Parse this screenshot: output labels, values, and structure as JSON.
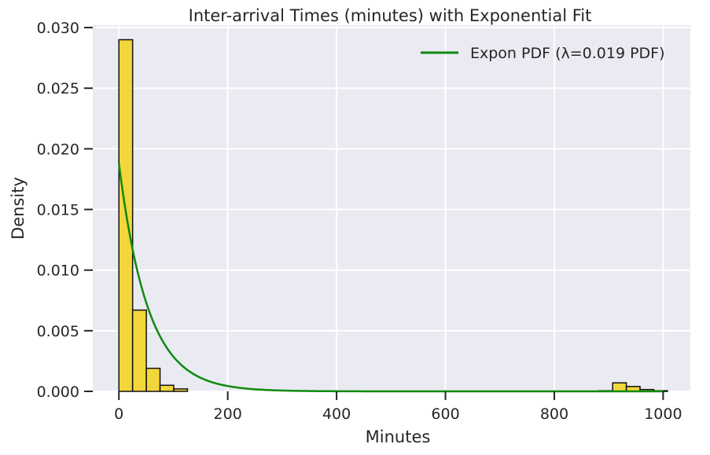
{
  "chart_data": {
    "type": "bar",
    "title": "Inter-arrival Times (minutes) with Exponential Fit",
    "xlabel": "Minutes",
    "ylabel": "Density",
    "xlim": [
      -48,
      1050
    ],
    "ylim": [
      0,
      0.0302
    ],
    "grid": true,
    "x_ticks": [
      0,
      200,
      400,
      600,
      800,
      1000
    ],
    "y_ticks": [
      0.0,
      0.005,
      0.01,
      0.015,
      0.02,
      0.025,
      0.03
    ],
    "y_tick_labels": [
      "0.000",
      "0.005",
      "0.010",
      "0.015",
      "0.020",
      "0.025",
      "0.030"
    ],
    "x_tick_labels": [
      "0",
      "200",
      "400",
      "600",
      "800",
      "1000"
    ],
    "histogram": {
      "bin_width": 25.2,
      "bins": [
        {
          "x0": 0,
          "value": 0.029
        },
        {
          "x0": 25.2,
          "value": 0.0067
        },
        {
          "x0": 50.4,
          "value": 0.0019
        },
        {
          "x0": 75.6,
          "value": 0.0005
        },
        {
          "x0": 100.8,
          "value": 0.0002
        },
        {
          "x0": 882,
          "value": 5e-05
        },
        {
          "x0": 907.2,
          "value": 0.0007
        },
        {
          "x0": 932.4,
          "value": 0.0004
        },
        {
          "x0": 957.6,
          "value": 0.00015
        },
        {
          "x0": 982.8,
          "value": 5e-05
        }
      ],
      "color": "#f5d21c",
      "edge_color": "#111111"
    },
    "fit": {
      "name": "Expon PDF (λ=0.019 PDF)",
      "lambda": 0.0188,
      "x_range": [
        0,
        1000
      ],
      "color": "#0d8a0d"
    },
    "legend_position": "top-right"
  }
}
